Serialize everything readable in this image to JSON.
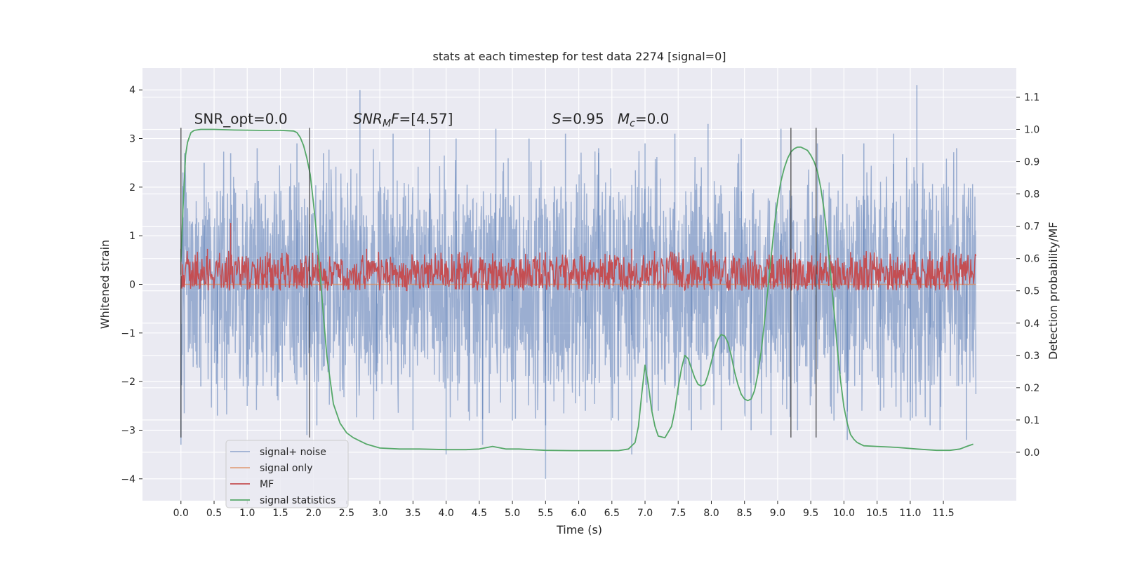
{
  "chart_data": {
    "type": "line",
    "title": "stats at each timestep for test data 2274 [signal=0]",
    "xlabel": "Time (s)",
    "ylabel": "Whitened strain",
    "y2label": "Detection probability/MF",
    "xlim": [
      -0.58,
      12.6
    ],
    "ylim": [
      -4.45,
      4.45
    ],
    "y2lim": [
      -0.15,
      1.19
    ],
    "x_ticks": [
      0.0,
      0.5,
      1.0,
      1.5,
      2.0,
      2.5,
      3.0,
      3.5,
      4.0,
      4.5,
      5.0,
      5.5,
      6.0,
      6.5,
      7.0,
      7.5,
      8.0,
      8.5,
      9.0,
      9.5,
      10.0,
      10.5,
      11.0,
      11.5
    ],
    "x_tick_labels": [
      "0.0",
      "0.5",
      "1.0",
      "1.5",
      "2.0",
      "2.5",
      "3.0",
      "3.5",
      "4.0",
      "4.5",
      "5.0",
      "5.5",
      "6.0",
      "6.5",
      "7.0",
      "7.5",
      "8.0",
      "8.5",
      "9.0",
      "9.5",
      "10.0",
      "10.5",
      "11.0",
      "11.5"
    ],
    "y_ticks": [
      -4,
      -3,
      -2,
      -1,
      0,
      1,
      2,
      3,
      4
    ],
    "y_tick_labels": [
      "−4",
      "−3",
      "−2",
      "−1",
      "0",
      "1",
      "2",
      "3",
      "4"
    ],
    "y2_ticks": [
      0.0,
      0.1,
      0.2,
      0.3,
      0.4,
      0.5,
      0.6,
      0.7,
      0.8,
      0.9,
      1.0,
      1.1
    ],
    "y2_tick_labels": [
      "0.0",
      "0.1",
      "0.2",
      "0.3",
      "0.4",
      "0.5",
      "0.6",
      "0.7",
      "0.8",
      "0.9",
      "1.0",
      "1.1"
    ],
    "grid": true,
    "legend_placement": "lower-left",
    "annotations": [
      {
        "text": "SNR_opt=0.0",
        "x": 0.2,
        "y": 3.3
      },
      {
        "text": "SNR",
        "sub": "M",
        "tail": "F=[4.57]",
        "italic": true,
        "x": 2.6,
        "y": 3.3
      },
      {
        "text": "S",
        "tail": "=0.95   ",
        "text2": "M",
        "sub2": "c",
        "tail2": "=0.0",
        "x": 5.6,
        "y": 3.3
      }
    ],
    "series": [
      {
        "name": "signal+ noise",
        "color": "#4c72b0",
        "opacity": 0.5,
        "style": "dense-noise",
        "x_range": [
          0.0,
          11.99
        ],
        "core_range": [
          -1.45,
          1.45
        ],
        "spikes": [
          [
            0.0,
            -3.3
          ],
          [
            0.03,
            2.3
          ],
          [
            0.3,
            -2.1
          ],
          [
            0.35,
            2.5
          ],
          [
            0.55,
            -2.7
          ],
          [
            0.75,
            2.7
          ],
          [
            1.0,
            -2.5
          ],
          [
            1.15,
            2.8
          ],
          [
            1.45,
            -2.3
          ],
          [
            1.75,
            2.9
          ],
          [
            1.9,
            -3.1
          ],
          [
            2.05,
            -2.9
          ],
          [
            2.15,
            2.7
          ],
          [
            2.4,
            -2.2
          ],
          [
            2.7,
            4.0
          ],
          [
            2.95,
            -2.2
          ],
          [
            3.2,
            3.1
          ],
          [
            3.5,
            -3.0
          ],
          [
            3.75,
            3.2
          ],
          [
            4.0,
            -3.5
          ],
          [
            4.15,
            3.0
          ],
          [
            4.35,
            -2.8
          ],
          [
            4.55,
            -3.3
          ],
          [
            4.75,
            3.2
          ],
          [
            5.0,
            -2.8
          ],
          [
            5.25,
            3.0
          ],
          [
            5.5,
            -2.9
          ],
          [
            5.5,
            -4.0
          ],
          [
            5.8,
            3.1
          ],
          [
            6.1,
            -2.6
          ],
          [
            6.3,
            2.8
          ],
          [
            6.6,
            -2.8
          ],
          [
            6.8,
            -3.5
          ],
          [
            7.0,
            2.9
          ],
          [
            7.2,
            -2.6
          ],
          [
            7.45,
            3.1
          ],
          [
            7.7,
            -3.0
          ],
          [
            7.95,
            3.3
          ],
          [
            8.15,
            -3.0
          ],
          [
            8.45,
            3.0
          ],
          [
            8.6,
            -3.0
          ],
          [
            8.9,
            -3.1
          ],
          [
            9.05,
            3.2
          ],
          [
            9.3,
            -3.0
          ],
          [
            9.6,
            2.9
          ],
          [
            9.85,
            -2.8
          ],
          [
            10.05,
            -3.2
          ],
          [
            10.3,
            2.9
          ],
          [
            10.55,
            -2.6
          ],
          [
            10.75,
            3.1
          ],
          [
            11.0,
            -2.8
          ],
          [
            11.1,
            4.1
          ],
          [
            11.3,
            -2.9
          ],
          [
            11.45,
            -3.0
          ],
          [
            11.7,
            2.8
          ],
          [
            11.85,
            -3.2
          ]
        ]
      },
      {
        "name": "signal only",
        "color": "#dd8452",
        "opacity": 0.7,
        "style": "flat",
        "x_range": [
          0.0,
          11.99
        ],
        "value": 0.0
      },
      {
        "name": "MF",
        "color": "#c44e52",
        "style": "dense-band",
        "axis": "right",
        "x_range": [
          0.0,
          11.99
        ],
        "band_y2": [
          0.5,
          0.6
        ],
        "peaks_y2": [
          [
            0.0,
            0.63
          ],
          [
            0.4,
            0.63
          ],
          [
            0.75,
            0.71
          ],
          [
            1.3,
            0.62
          ],
          [
            2.8,
            0.63
          ],
          [
            4.2,
            0.62
          ],
          [
            5.5,
            0.62
          ],
          [
            6.8,
            0.63
          ],
          [
            8.0,
            0.63
          ],
          [
            9.2,
            0.63
          ],
          [
            10.1,
            0.62
          ],
          [
            11.6,
            0.63
          ]
        ]
      },
      {
        "name": "signal statistics",
        "color": "#55a868",
        "style": "line",
        "axis": "right",
        "x": [
          0.0,
          0.03,
          0.07,
          0.1,
          0.15,
          0.2,
          0.3,
          0.5,
          0.8,
          1.2,
          1.5,
          1.6,
          1.7,
          1.75,
          1.8,
          1.85,
          1.9,
          1.95,
          2.0,
          2.05,
          2.1,
          2.15,
          2.2,
          2.3,
          2.4,
          2.5,
          2.6,
          2.8,
          3.0,
          3.3,
          3.6,
          4.0,
          4.3,
          4.5,
          4.7,
          4.9,
          5.1,
          5.5,
          5.9,
          6.3,
          6.6,
          6.75,
          6.85,
          6.9,
          6.95,
          7.0,
          7.05,
          7.1,
          7.15,
          7.2,
          7.3,
          7.4,
          7.45,
          7.5,
          7.55,
          7.6,
          7.65,
          7.7,
          7.75,
          7.8,
          7.85,
          7.9,
          7.95,
          8.0,
          8.05,
          8.1,
          8.15,
          8.2,
          8.25,
          8.3,
          8.35,
          8.4,
          8.45,
          8.5,
          8.55,
          8.6,
          8.65,
          8.7,
          8.75,
          8.8,
          8.85,
          8.9,
          8.95,
          9.0,
          9.05,
          9.1,
          9.15,
          9.2,
          9.25,
          9.3,
          9.35,
          9.4,
          9.45,
          9.5,
          9.55,
          9.6,
          9.65,
          9.7,
          9.75,
          9.8,
          9.85,
          9.9,
          9.95,
          10.0,
          10.05,
          10.1,
          10.15,
          10.2,
          10.3,
          10.5,
          10.8,
          11.1,
          11.4,
          11.6,
          11.75,
          11.85,
          11.95
        ],
        "y2": [
          0.59,
          0.75,
          0.92,
          0.96,
          0.99,
          0.997,
          1.0,
          1.0,
          0.998,
          0.997,
          0.997,
          0.996,
          0.995,
          0.99,
          0.975,
          0.95,
          0.91,
          0.86,
          0.77,
          0.67,
          0.55,
          0.42,
          0.3,
          0.15,
          0.09,
          0.06,
          0.045,
          0.025,
          0.013,
          0.01,
          0.01,
          0.008,
          0.008,
          0.01,
          0.018,
          0.01,
          0.01,
          0.006,
          0.005,
          0.005,
          0.005,
          0.01,
          0.03,
          0.08,
          0.18,
          0.27,
          0.21,
          0.13,
          0.08,
          0.05,
          0.045,
          0.08,
          0.13,
          0.2,
          0.26,
          0.3,
          0.29,
          0.26,
          0.23,
          0.21,
          0.205,
          0.21,
          0.24,
          0.28,
          0.32,
          0.35,
          0.365,
          0.36,
          0.34,
          0.3,
          0.25,
          0.21,
          0.18,
          0.165,
          0.16,
          0.165,
          0.19,
          0.24,
          0.31,
          0.4,
          0.5,
          0.6,
          0.7,
          0.78,
          0.84,
          0.88,
          0.91,
          0.93,
          0.94,
          0.945,
          0.945,
          0.94,
          0.935,
          0.92,
          0.9,
          0.87,
          0.82,
          0.75,
          0.66,
          0.55,
          0.44,
          0.32,
          0.22,
          0.14,
          0.09,
          0.055,
          0.04,
          0.03,
          0.02,
          0.018,
          0.015,
          0.01,
          0.006,
          0.006,
          0.01,
          0.018,
          0.025,
          0.028
        ]
      }
    ],
    "vertical_lines": [
      {
        "x": 0.0,
        "y_range": [
          -3.15,
          3.22
        ]
      },
      {
        "x": 1.94,
        "y_range": [
          -3.15,
          3.22
        ]
      },
      {
        "x": 9.2,
        "y_range": [
          -3.15,
          3.22
        ]
      },
      {
        "x": 9.58,
        "y_range": [
          -3.15,
          3.22
        ]
      }
    ]
  }
}
